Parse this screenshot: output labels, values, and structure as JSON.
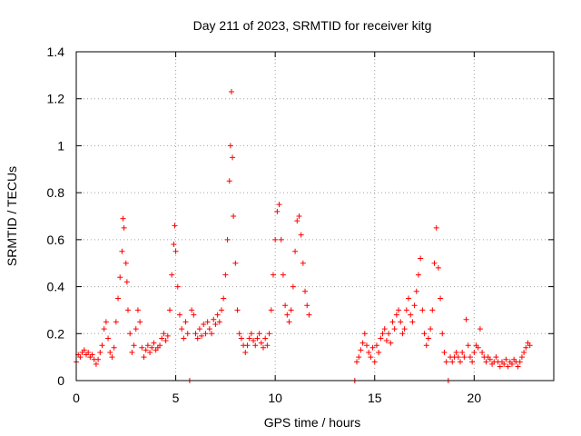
{
  "chart_data": {
    "type": "scatter",
    "title": "Day 211 of 2023, SRMTID for receiver kitg",
    "xlabel": "GPS time / hours",
    "ylabel": "SRMTID / TECUs",
    "xlim": [
      0,
      24
    ],
    "ylim": [
      0,
      1.4
    ],
    "xticks": [
      0,
      5,
      10,
      15,
      20
    ],
    "yticks": [
      0,
      0.2,
      0.4,
      0.6,
      0.8,
      1.0,
      1.2,
      1.4
    ],
    "xtick_labels": [
      "0",
      "5",
      "10",
      "15",
      "20"
    ],
    "ytick_labels": [
      "0",
      "0.2",
      "0.4",
      "0.6",
      "0.8",
      "1",
      "1.2",
      "1.4"
    ],
    "grid": true,
    "marker": "+",
    "series": [
      {
        "name": "SRMTID",
        "color": "#ff0000",
        "points": [
          [
            0.0,
            0.08
          ],
          [
            0.1,
            0.11
          ],
          [
            0.2,
            0.1
          ],
          [
            0.3,
            0.12
          ],
          [
            0.4,
            0.13
          ],
          [
            0.5,
            0.11
          ],
          [
            0.6,
            0.12
          ],
          [
            0.7,
            0.1
          ],
          [
            0.8,
            0.11
          ],
          [
            0.9,
            0.09
          ],
          [
            1.0,
            0.07
          ],
          [
            1.1,
            0.09
          ],
          [
            1.2,
            0.12
          ],
          [
            1.3,
            0.15
          ],
          [
            1.4,
            0.22
          ],
          [
            1.5,
            0.25
          ],
          [
            1.6,
            0.18
          ],
          [
            1.7,
            0.12
          ],
          [
            1.8,
            0.1
          ],
          [
            1.9,
            0.14
          ],
          [
            2.0,
            0.25
          ],
          [
            2.1,
            0.35
          ],
          [
            2.2,
            0.44
          ],
          [
            2.3,
            0.55
          ],
          [
            2.35,
            0.69
          ],
          [
            2.4,
            0.65
          ],
          [
            2.5,
            0.5
          ],
          [
            2.55,
            0.42
          ],
          [
            2.6,
            0.3
          ],
          [
            2.7,
            0.2
          ],
          [
            2.8,
            0.12
          ],
          [
            2.9,
            0.15
          ],
          [
            3.0,
            0.22
          ],
          [
            3.1,
            0.3
          ],
          [
            3.2,
            0.25
          ],
          [
            3.3,
            0.14
          ],
          [
            3.4,
            0.1
          ],
          [
            3.5,
            0.13
          ],
          [
            3.6,
            0.15
          ],
          [
            3.7,
            0.12
          ],
          [
            3.8,
            0.14
          ],
          [
            3.9,
            0.16
          ],
          [
            4.0,
            0.13
          ],
          [
            4.1,
            0.14
          ],
          [
            4.2,
            0.15
          ],
          [
            4.3,
            0.18
          ],
          [
            4.4,
            0.2
          ],
          [
            4.5,
            0.17
          ],
          [
            4.6,
            0.19
          ],
          [
            4.7,
            0.3
          ],
          [
            4.8,
            0.45
          ],
          [
            4.9,
            0.58
          ],
          [
            4.95,
            0.66
          ],
          [
            5.0,
            0.55
          ],
          [
            5.1,
            0.4
          ],
          [
            5.2,
            0.28
          ],
          [
            5.3,
            0.22
          ],
          [
            5.4,
            0.18
          ],
          [
            5.5,
            0.25
          ],
          [
            5.6,
            0.2
          ],
          [
            5.7,
            0.0
          ],
          [
            5.8,
            0.3
          ],
          [
            5.9,
            0.28
          ],
          [
            6.0,
            0.2
          ],
          [
            6.1,
            0.18
          ],
          [
            6.2,
            0.22
          ],
          [
            6.3,
            0.19
          ],
          [
            6.4,
            0.24
          ],
          [
            6.5,
            0.2
          ],
          [
            6.6,
            0.25
          ],
          [
            6.7,
            0.22
          ],
          [
            6.8,
            0.2
          ],
          [
            6.9,
            0.26
          ],
          [
            7.0,
            0.24
          ],
          [
            7.1,
            0.28
          ],
          [
            7.2,
            0.25
          ],
          [
            7.3,
            0.3
          ],
          [
            7.4,
            0.35
          ],
          [
            7.5,
            0.45
          ],
          [
            7.6,
            0.6
          ],
          [
            7.7,
            0.85
          ],
          [
            7.75,
            1.0
          ],
          [
            7.8,
            1.23
          ],
          [
            7.85,
            0.95
          ],
          [
            7.9,
            0.7
          ],
          [
            8.0,
            0.5
          ],
          [
            8.1,
            0.3
          ],
          [
            8.2,
            0.2
          ],
          [
            8.3,
            0.18
          ],
          [
            8.4,
            0.15
          ],
          [
            8.5,
            0.12
          ],
          [
            8.6,
            0.15
          ],
          [
            8.7,
            0.18
          ],
          [
            8.8,
            0.2
          ],
          [
            8.9,
            0.17
          ],
          [
            9.0,
            0.15
          ],
          [
            9.1,
            0.18
          ],
          [
            9.2,
            0.2
          ],
          [
            9.3,
            0.16
          ],
          [
            9.4,
            0.14
          ],
          [
            9.5,
            0.18
          ],
          [
            9.6,
            0.15
          ],
          [
            9.7,
            0.2
          ],
          [
            9.8,
            0.3
          ],
          [
            9.9,
            0.45
          ],
          [
            10.0,
            0.6
          ],
          [
            10.1,
            0.72
          ],
          [
            10.2,
            0.75
          ],
          [
            10.3,
            0.6
          ],
          [
            10.4,
            0.45
          ],
          [
            10.5,
            0.32
          ],
          [
            10.6,
            0.28
          ],
          [
            10.7,
            0.25
          ],
          [
            10.8,
            0.3
          ],
          [
            10.9,
            0.4
          ],
          [
            11.0,
            0.55
          ],
          [
            11.1,
            0.68
          ],
          [
            11.2,
            0.7
          ],
          [
            11.3,
            0.62
          ],
          [
            11.4,
            0.5
          ],
          [
            11.5,
            0.38
          ],
          [
            11.6,
            0.32
          ],
          [
            11.7,
            0.28
          ],
          [
            14.0,
            0.0
          ],
          [
            14.1,
            0.08
          ],
          [
            14.2,
            0.1
          ],
          [
            14.3,
            0.13
          ],
          [
            14.4,
            0.16
          ],
          [
            14.5,
            0.2
          ],
          [
            14.6,
            0.15
          ],
          [
            14.7,
            0.12
          ],
          [
            14.8,
            0.1
          ],
          [
            14.9,
            0.14
          ],
          [
            15.0,
            0.08
          ],
          [
            15.1,
            0.15
          ],
          [
            15.2,
            0.12
          ],
          [
            15.3,
            0.18
          ],
          [
            15.4,
            0.2
          ],
          [
            15.5,
            0.22
          ],
          [
            15.6,
            0.17
          ],
          [
            15.7,
            0.2
          ],
          [
            15.8,
            0.16
          ],
          [
            15.9,
            0.25
          ],
          [
            16.0,
            0.22
          ],
          [
            16.1,
            0.28
          ],
          [
            16.2,
            0.3
          ],
          [
            16.3,
            0.25
          ],
          [
            16.4,
            0.2
          ],
          [
            16.5,
            0.22
          ],
          [
            16.6,
            0.3
          ],
          [
            16.7,
            0.35
          ],
          [
            16.8,
            0.28
          ],
          [
            16.9,
            0.25
          ],
          [
            17.0,
            0.32
          ],
          [
            17.1,
            0.38
          ],
          [
            17.2,
            0.45
          ],
          [
            17.3,
            0.52
          ],
          [
            17.4,
            0.3
          ],
          [
            17.5,
            0.2
          ],
          [
            17.6,
            0.15
          ],
          [
            17.7,
            0.18
          ],
          [
            17.8,
            0.22
          ],
          [
            17.9,
            0.3
          ],
          [
            18.0,
            0.5
          ],
          [
            18.1,
            0.65
          ],
          [
            18.2,
            0.48
          ],
          [
            18.3,
            0.35
          ],
          [
            18.4,
            0.2
          ],
          [
            18.5,
            0.12
          ],
          [
            18.6,
            0.08
          ],
          [
            18.7,
            0.0
          ],
          [
            18.8,
            0.1
          ],
          [
            18.9,
            0.08
          ],
          [
            19.0,
            0.1
          ],
          [
            19.1,
            0.12
          ],
          [
            19.2,
            0.1
          ],
          [
            19.3,
            0.08
          ],
          [
            19.4,
            0.12
          ],
          [
            19.5,
            0.1
          ],
          [
            19.6,
            0.26
          ],
          [
            19.7,
            0.15
          ],
          [
            19.8,
            0.1
          ],
          [
            19.9,
            0.08
          ],
          [
            20.0,
            0.12
          ],
          [
            20.1,
            0.15
          ],
          [
            20.2,
            0.14
          ],
          [
            20.3,
            0.22
          ],
          [
            20.4,
            0.12
          ],
          [
            20.5,
            0.1
          ],
          [
            20.6,
            0.08
          ],
          [
            20.7,
            0.1
          ],
          [
            20.8,
            0.09
          ],
          [
            20.9,
            0.07
          ],
          [
            21.0,
            0.08
          ],
          [
            21.1,
            0.1
          ],
          [
            21.2,
            0.08
          ],
          [
            21.3,
            0.06
          ],
          [
            21.4,
            0.08
          ],
          [
            21.5,
            0.07
          ],
          [
            21.6,
            0.09
          ],
          [
            21.7,
            0.06
          ],
          [
            21.8,
            0.08
          ],
          [
            21.9,
            0.07
          ],
          [
            22.0,
            0.09
          ],
          [
            22.1,
            0.08
          ],
          [
            22.2,
            0.06
          ],
          [
            22.3,
            0.08
          ],
          [
            22.4,
            0.1
          ],
          [
            22.5,
            0.12
          ],
          [
            22.6,
            0.14
          ],
          [
            22.7,
            0.16
          ],
          [
            22.8,
            0.15
          ]
        ]
      }
    ]
  }
}
